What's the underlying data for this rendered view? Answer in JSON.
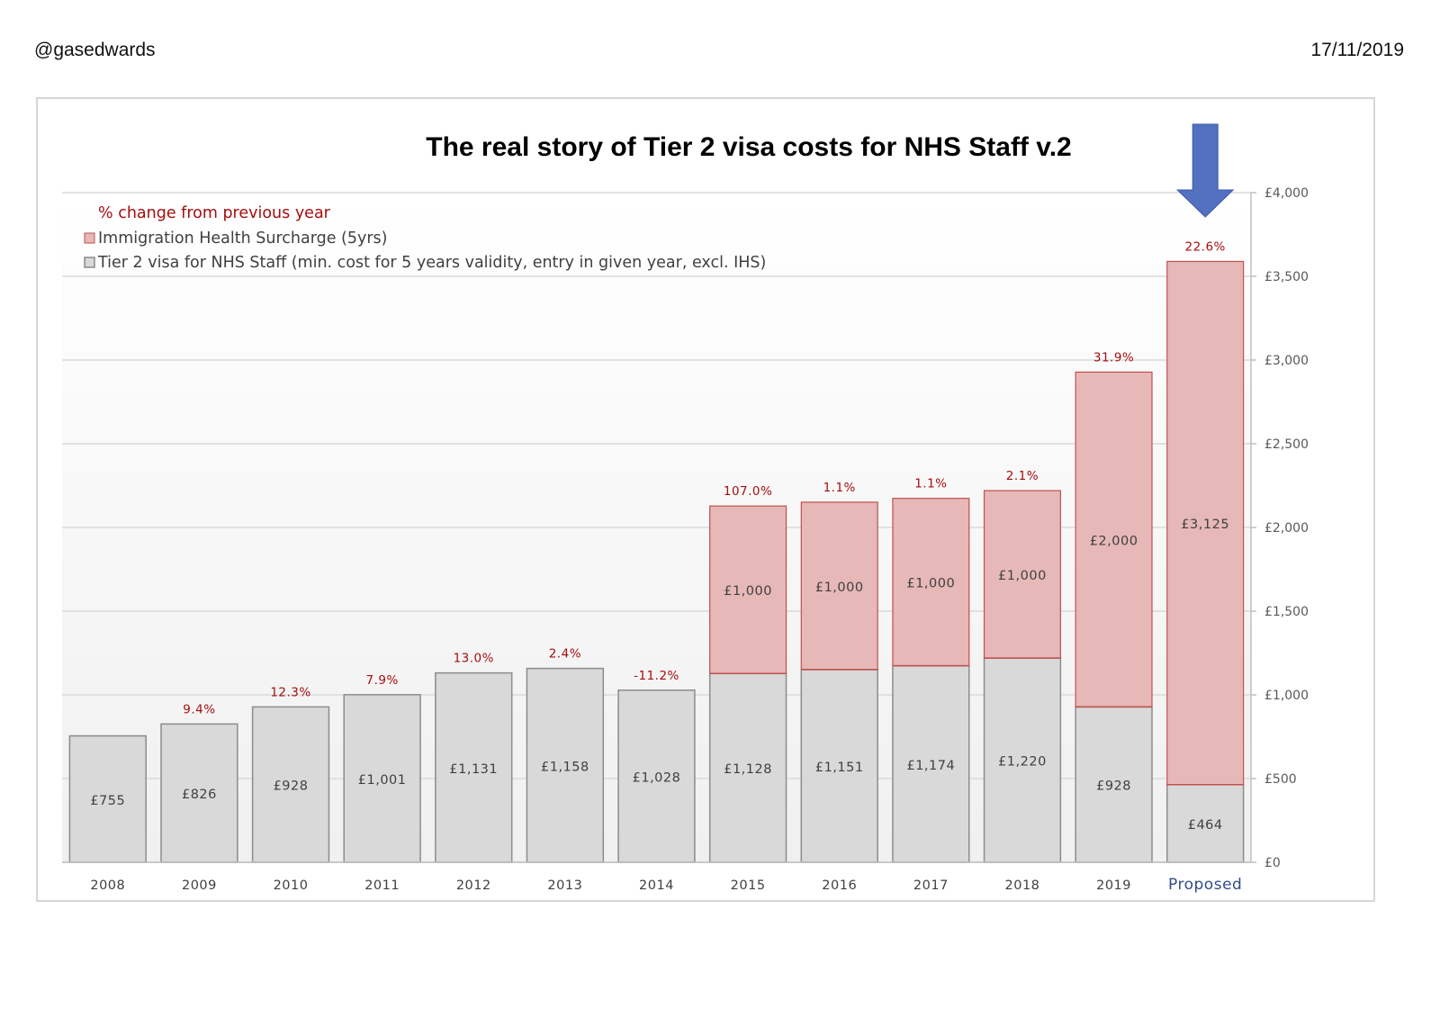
{
  "page": {
    "handle": "@gasedwards",
    "date": "17/11/2019"
  },
  "chart_data": {
    "type": "bar",
    "stacked": true,
    "title": "The real story of Tier 2 visa costs for NHS Staff v.2",
    "categories": [
      "2008",
      "2009",
      "2010",
      "2011",
      "2012",
      "2013",
      "2014",
      "2015",
      "2016",
      "2017",
      "2018",
      "2019",
      "Proposed"
    ],
    "series": [
      {
        "name": "Tier 2 visa for NHS Staff (min. cost for 5 years validity, entry in given year, excl. IHS)",
        "values": [
          755,
          826,
          928,
          1001,
          1131,
          1158,
          1028,
          1128,
          1151,
          1174,
          1220,
          928,
          464
        ],
        "labels": [
          "£755",
          "£826",
          "£928",
          "£1,001",
          "£1,131",
          "£1,158",
          "£1,028",
          "£1,128",
          "£1,151",
          "£1,174",
          "£1,220",
          "£928",
          "£464"
        ],
        "color": "#d9d9d9",
        "stroke": "#8c8c8c"
      },
      {
        "name": "Immigration Health Surcharge (5yrs)",
        "values": [
          0,
          0,
          0,
          0,
          0,
          0,
          0,
          1000,
          1000,
          1000,
          1000,
          2000,
          3125
        ],
        "labels": [
          "",
          "",
          "",
          "",
          "",
          "",
          "",
          "£1,000",
          "£1,000",
          "£1,000",
          "£1,000",
          "£2,000",
          "£3,125"
        ],
        "color": "#e6b8b7",
        "stroke": "#c0504d"
      }
    ],
    "pct_change": {
      "name": "% change from previous year",
      "labels": [
        "",
        "9.4%",
        "12.3%",
        "7.9%",
        "13.0%",
        "2.4%",
        "-11.2%",
        "107.0%",
        "1.1%",
        "1.1%",
        "2.1%",
        "31.9%",
        "22.6%"
      ],
      "color": "#a50e0e"
    },
    "y_axis": {
      "position": "right",
      "ylim": [
        0,
        4000
      ],
      "ticks": [
        0,
        500,
        1000,
        1500,
        2000,
        2500,
        3000,
        3500,
        4000
      ],
      "tick_labels": [
        "£0",
        "£500",
        "£1,000",
        "£1,500",
        "£2,000",
        "£2,500",
        "£3,000",
        "£3,500",
        "£4,000"
      ]
    },
    "grid": true,
    "legend": "top-left",
    "highlight": {
      "category": "Proposed",
      "arrow_color": "#5470c1",
      "label_color": "#2f4c8a"
    }
  }
}
